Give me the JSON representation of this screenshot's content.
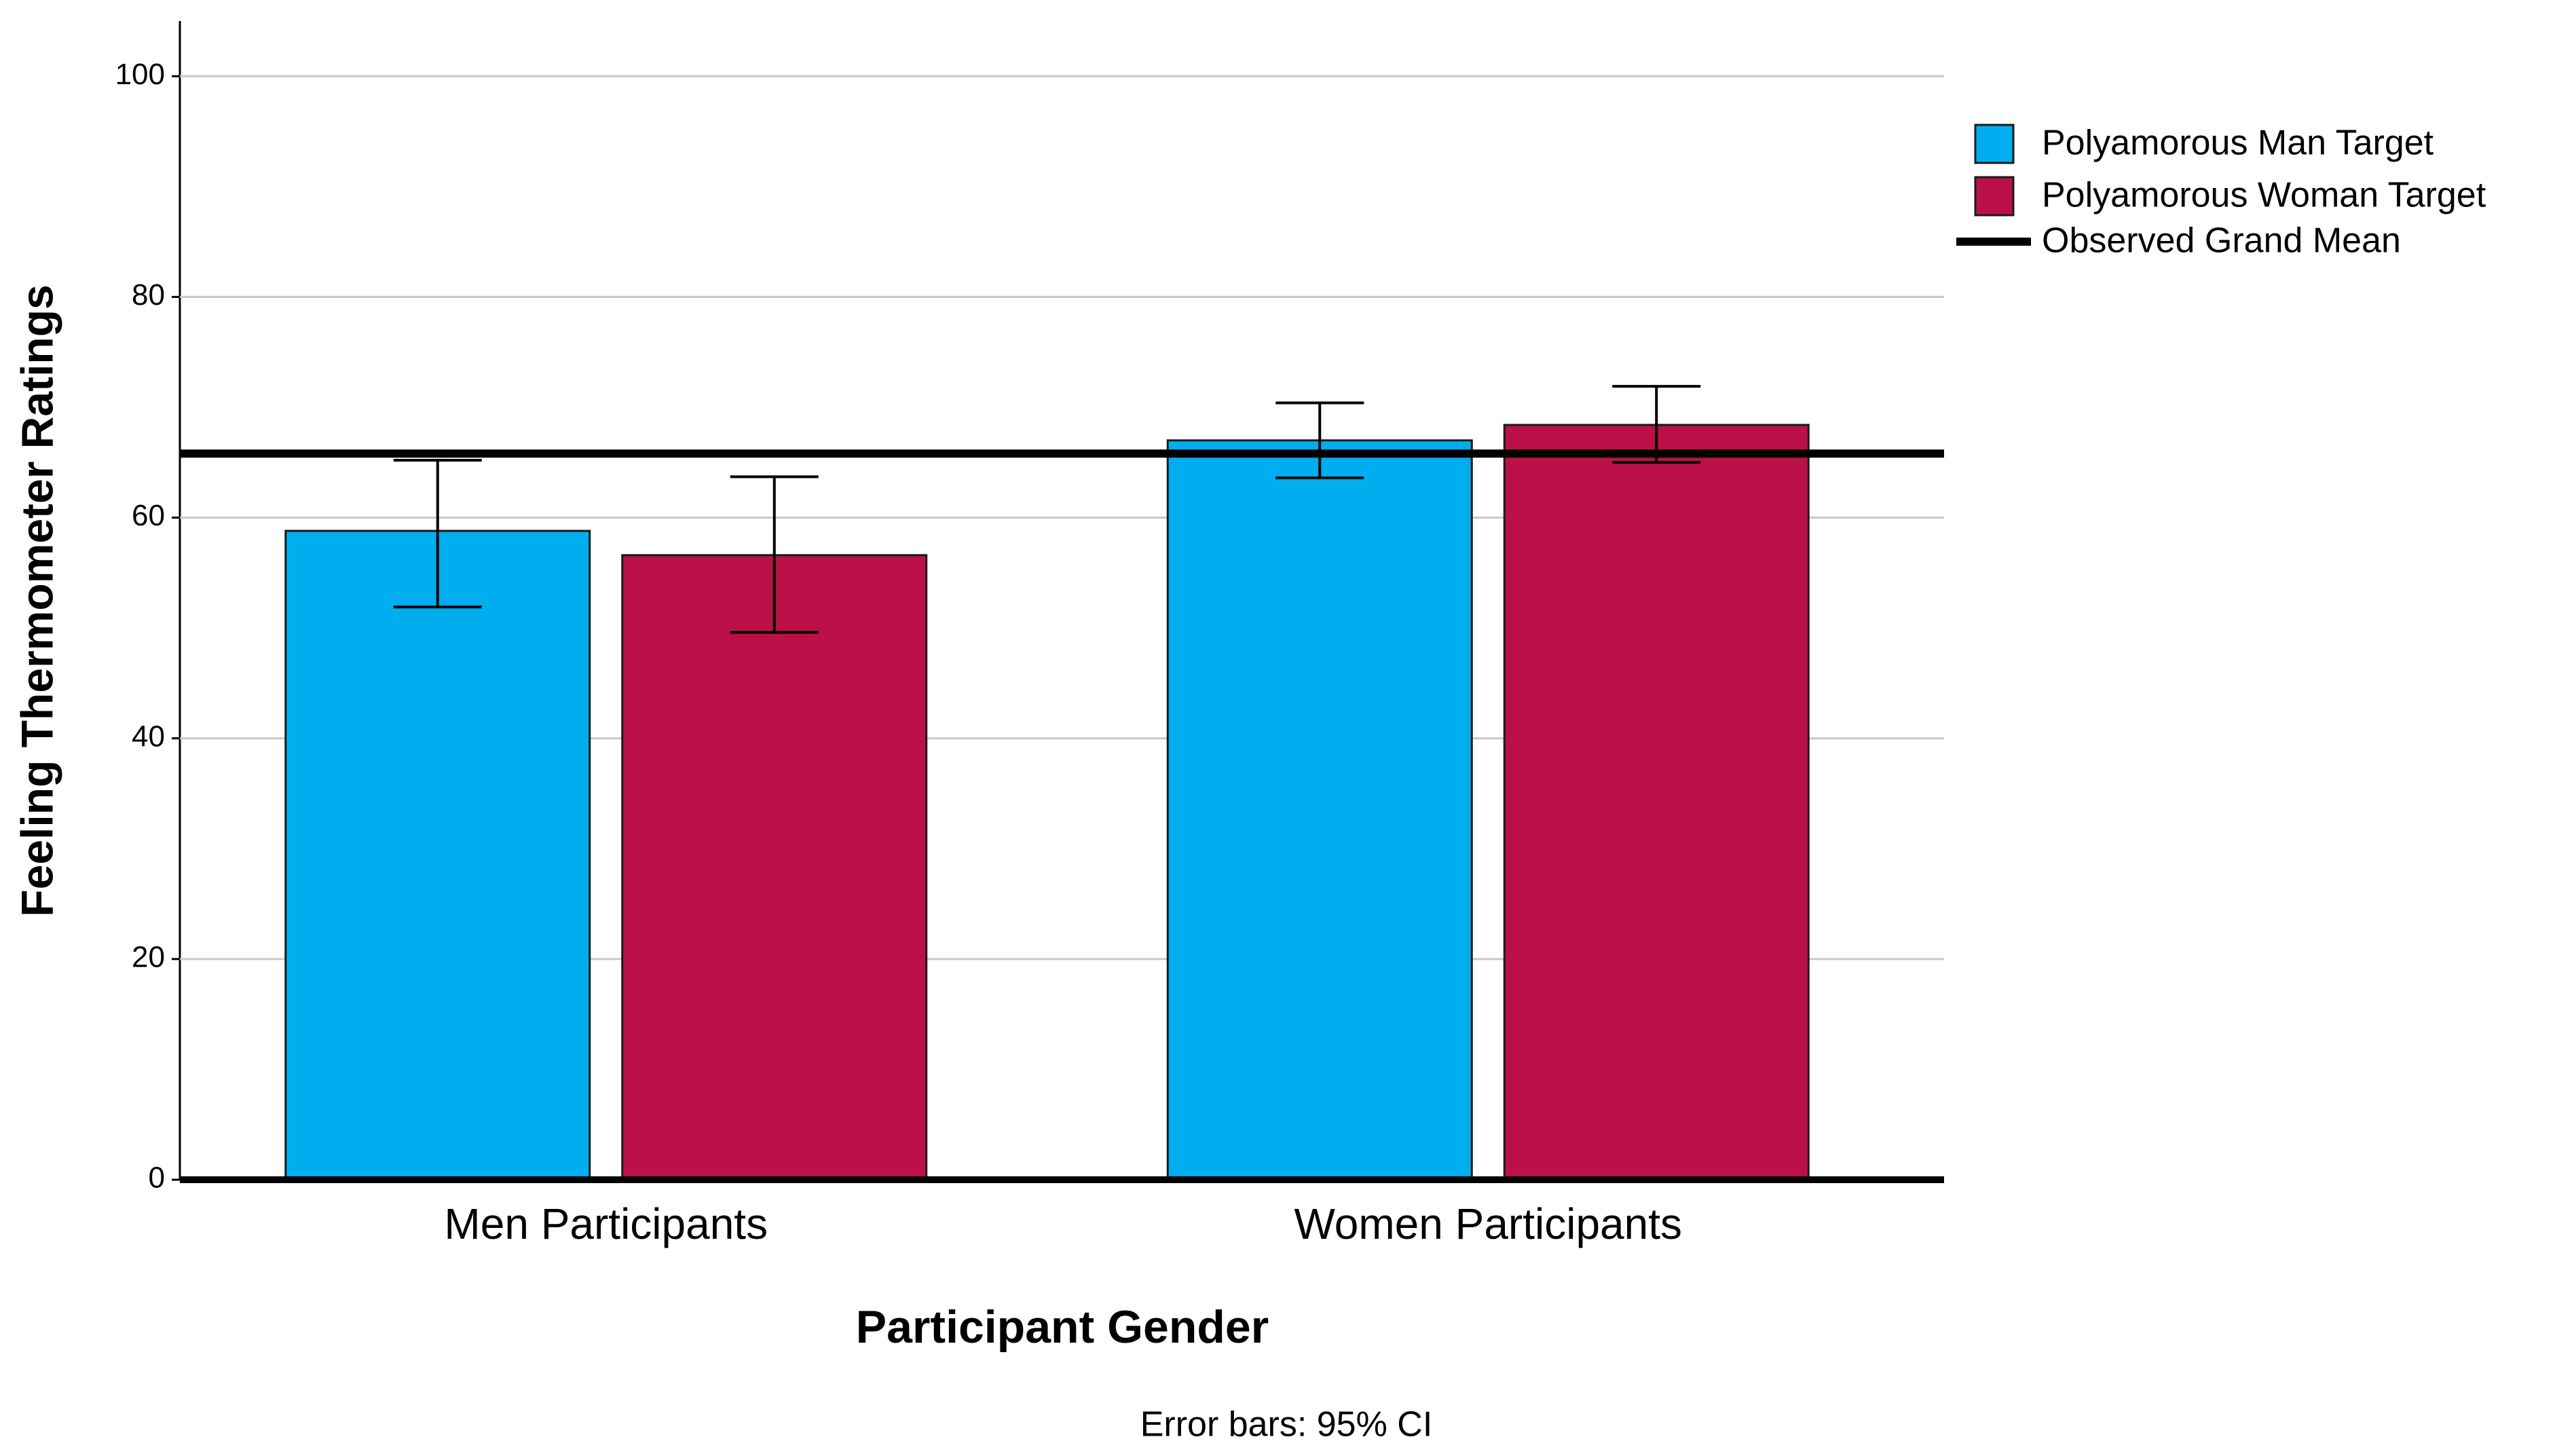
{
  "chart_data": {
    "type": "bar",
    "x_label": "Participant Gender",
    "y_label": "Feeling Thermometer Ratings",
    "note": "Error bars: 95% CI",
    "categories": [
      "Men Participants",
      "Women Participants"
    ],
    "series": [
      {
        "name": "Polyamorous Man Target",
        "color": "#00aeef",
        "values": [
          58.8,
          67.0
        ],
        "ci_low": [
          51.9,
          63.6
        ],
        "ci_high": [
          65.2,
          70.4
        ]
      },
      {
        "name": "Polyamorous Woman Target",
        "color": "#bc1148",
        "values": [
          56.6,
          68.4
        ],
        "ci_low": [
          49.6,
          65.0
        ],
        "ci_high": [
          63.7,
          71.9
        ]
      }
    ],
    "reference_line": {
      "name": "Observed Grand Mean",
      "value": 65.8,
      "color": "#000000"
    },
    "ylim": [
      0,
      105
    ],
    "yticks": [
      0,
      20,
      40,
      60,
      80,
      100
    ],
    "grid": true
  }
}
